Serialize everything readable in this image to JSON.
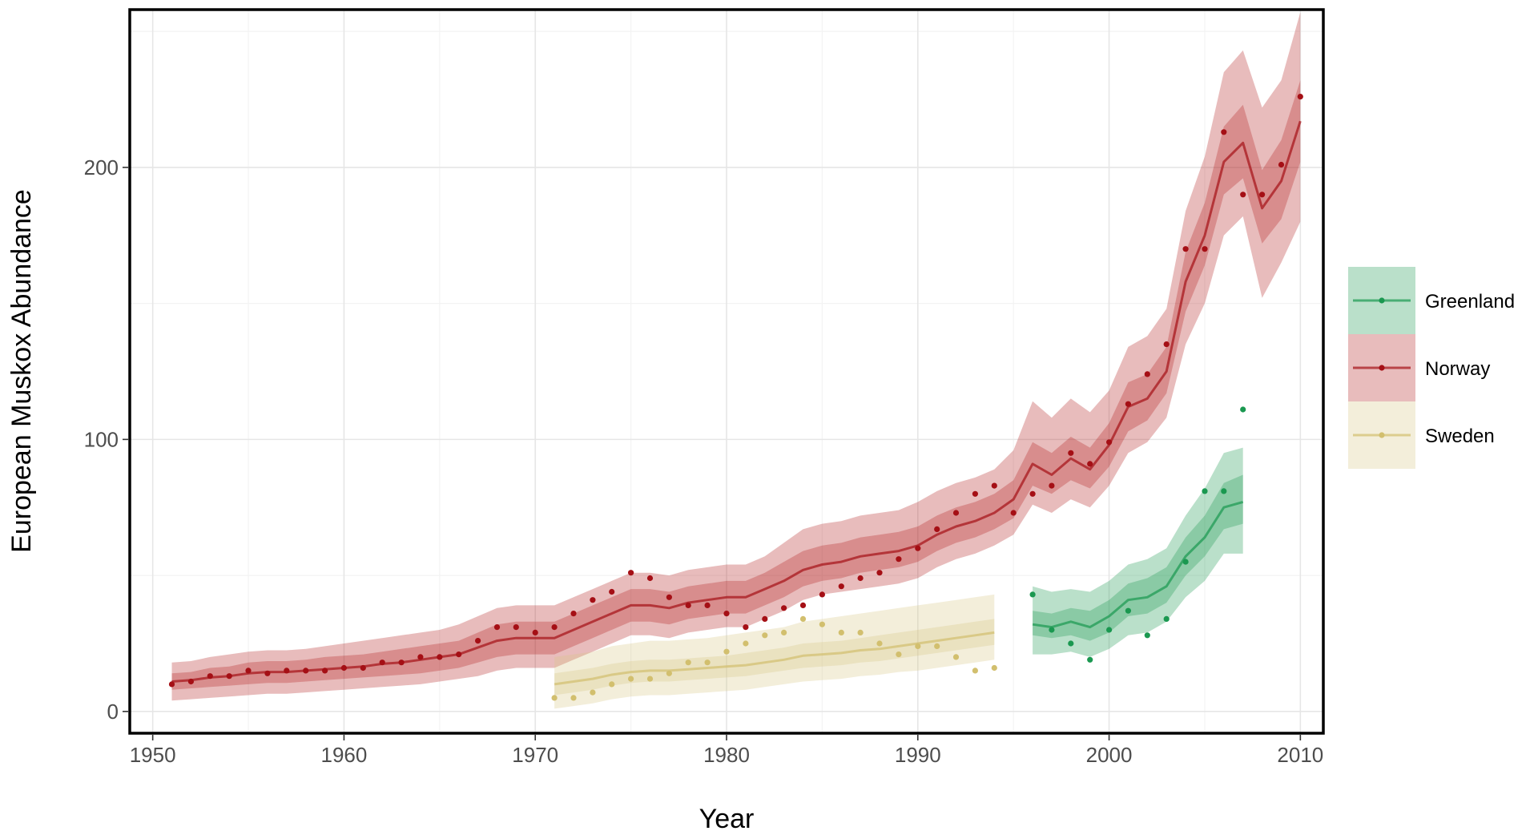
{
  "chart_data": {
    "type": "line",
    "title": "",
    "xlabel": "Year",
    "ylabel": "European Muskox Abundance",
    "xlim": [
      1948.8,
      2011.2
    ],
    "ylim": [
      -8,
      258
    ],
    "x_ticks": [
      1950,
      1960,
      1970,
      1980,
      1990,
      2000,
      2010
    ],
    "x_tick_labels": [
      "1950",
      "1960",
      "1970",
      "1980",
      "1990",
      "2000",
      "2010"
    ],
    "y_ticks": [
      0,
      100,
      200
    ],
    "y_tick_labels": [
      "0",
      "100",
      "200"
    ],
    "grid": true,
    "legend_position": "right",
    "band_note": "two nested credible-interval ribbons per series (inner and outer)",
    "series": [
      {
        "name": "Greenland",
        "color": "#1a9850",
        "band_color": "#1a9850",
        "years": [
          1996,
          1997,
          1998,
          1999,
          2000,
          2001,
          2002,
          2003,
          2004,
          2005,
          2006,
          2007
        ],
        "fitted": [
          32,
          31,
          33,
          31,
          35,
          41,
          42,
          46,
          57,
          64,
          75,
          77
        ],
        "inner_low": [
          28,
          27,
          28,
          26,
          29,
          35,
          36,
          40,
          50,
          57,
          67,
          69
        ],
        "inner_high": [
          37,
          36,
          38,
          37,
          41,
          47,
          49,
          53,
          64,
          72,
          84,
          87
        ],
        "outer_low": [
          21,
          21,
          22,
          20,
          23,
          28,
          29,
          33,
          42,
          48,
          58,
          58
        ],
        "outer_high": [
          46,
          44,
          45,
          44,
          48,
          54,
          56,
          60,
          72,
          82,
          95,
          97
        ],
        "observed": [
          43,
          30,
          25,
          19,
          30,
          37,
          28,
          34,
          55,
          81,
          81,
          111
        ]
      },
      {
        "name": "Norway",
        "color": "#a50f15",
        "band_color": "#b22222",
        "years": [
          1951,
          1952,
          1953,
          1954,
          1955,
          1956,
          1957,
          1958,
          1959,
          1960,
          1961,
          1962,
          1963,
          1964,
          1965,
          1966,
          1967,
          1968,
          1969,
          1970,
          1971,
          1972,
          1973,
          1974,
          1975,
          1976,
          1977,
          1978,
          1979,
          1980,
          1981,
          1982,
          1983,
          1984,
          1985,
          1986,
          1987,
          1988,
          1989,
          1990,
          1991,
          1992,
          1993,
          1994,
          1995,
          1996,
          1997,
          1998,
          1999,
          2000,
          2001,
          2002,
          2003,
          2004,
          2005,
          2006,
          2007,
          2008,
          2009,
          2010
        ],
        "fitted": [
          11,
          11.5,
          12.5,
          13,
          14,
          14.5,
          14.5,
          15,
          15.5,
          16,
          16.5,
          17.5,
          18,
          19,
          20,
          21,
          23.5,
          26,
          27,
          27,
          27,
          30,
          33,
          36,
          39,
          39,
          38,
          40,
          41,
          42,
          42,
          45,
          48,
          52,
          54,
          55,
          57,
          58,
          59,
          61,
          65,
          68,
          70,
          73,
          78,
          91,
          87,
          93,
          89,
          98,
          112,
          115,
          125,
          158,
          175,
          202,
          209,
          185,
          195,
          217
        ],
        "inner_low": [
          8,
          8.5,
          9,
          9.5,
          10,
          10.5,
          10.5,
          11,
          11.5,
          12,
          12.5,
          13,
          13.5,
          14,
          15,
          16,
          18,
          20,
          21,
          21,
          21,
          24,
          27,
          30,
          33,
          33,
          32,
          34,
          35,
          36,
          36,
          39,
          42,
          46,
          48,
          49,
          51,
          52,
          53,
          55,
          59,
          62,
          64,
          67,
          71,
          83,
          80,
          85,
          82,
          90,
          103,
          107,
          117,
          147,
          164,
          190,
          196,
          172,
          181,
          202
        ],
        "inner_high": [
          14,
          14.5,
          16,
          16.5,
          18,
          18.5,
          18.5,
          19,
          20,
          20.5,
          21,
          22,
          23,
          24,
          25,
          26,
          29,
          32,
          33,
          33,
          33,
          36,
          39,
          42,
          45,
          45,
          44,
          46,
          47,
          48,
          48,
          51,
          55,
          59,
          61,
          62,
          64,
          65,
          66,
          68,
          72,
          75,
          77,
          80,
          85,
          99,
          95,
          101,
          97,
          106,
          121,
          124,
          134,
          169,
          187,
          215,
          223,
          199,
          210,
          232
        ],
        "outer_low": [
          4,
          4.5,
          5,
          5.5,
          6,
          6.5,
          6.5,
          7,
          7.5,
          8,
          8.5,
          9,
          9.5,
          10,
          11,
          12,
          13,
          15,
          16,
          16,
          16,
          19,
          22,
          25,
          28,
          28,
          27,
          29,
          30,
          31,
          31,
          34,
          37,
          41,
          43,
          44,
          45,
          46,
          47,
          49,
          53,
          56,
          58,
          61,
          65,
          76,
          73,
          78,
          75,
          83,
          95,
          99,
          108,
          135,
          150,
          175,
          182,
          152,
          165,
          180
        ],
        "outer_high": [
          18,
          18.5,
          20,
          21,
          22,
          22.5,
          22.5,
          23,
          24,
          25,
          26,
          27,
          28,
          29,
          30,
          32,
          35,
          38,
          39,
          39,
          39,
          42,
          45,
          48,
          51,
          51,
          50,
          52,
          53,
          54,
          54,
          57,
          62,
          67,
          69,
          70,
          72,
          73,
          74,
          77,
          81,
          84,
          86,
          89,
          96,
          114,
          108,
          115,
          110,
          118,
          134,
          138,
          148,
          184,
          204,
          235,
          243,
          222,
          232,
          257
        ],
        "observed": [
          10,
          11,
          13,
          13,
          15,
          14,
          15,
          15,
          15,
          16,
          16,
          18,
          18,
          20,
          20,
          21,
          26,
          31,
          31,
          29,
          31,
          36,
          41,
          44,
          51,
          49,
          42,
          39,
          39,
          36,
          31,
          34,
          38,
          39,
          43,
          46,
          49,
          51,
          56,
          60,
          67,
          73,
          80,
          83,
          73,
          80,
          83,
          95,
          91,
          99,
          113,
          124,
          135,
          170,
          170,
          213,
          190,
          190,
          201,
          226
        ]
      },
      {
        "name": "Sweden",
        "color": "#d2bf6e",
        "band_color": "#d8c883",
        "years": [
          1971,
          1972,
          1973,
          1974,
          1975,
          1976,
          1977,
          1978,
          1979,
          1980,
          1981,
          1982,
          1983,
          1984,
          1985,
          1986,
          1987,
          1988,
          1989,
          1990,
          1991,
          1992,
          1993,
          1994
        ],
        "fitted": [
          10,
          11,
          12,
          13.5,
          14.5,
          15,
          15,
          15.5,
          16,
          16.5,
          17,
          18,
          19,
          20.5,
          21,
          21.5,
          22.5,
          23,
          24,
          25,
          26,
          27,
          28,
          29
        ],
        "inner_low": [
          6,
          7,
          8,
          9.5,
          10.5,
          11,
          11,
          11.5,
          12,
          12.5,
          13,
          14,
          15,
          16,
          16.5,
          17,
          18,
          18.5,
          19.5,
          20.5,
          21.5,
          22.5,
          23.5,
          24.5
        ],
        "inner_high": [
          14,
          15,
          16,
          17.5,
          18.5,
          19,
          19,
          19.5,
          20,
          20.5,
          21.5,
          22.5,
          23.5,
          25,
          25.5,
          26,
          27,
          28,
          29,
          30,
          31,
          32,
          33,
          34
        ],
        "outer_low": [
          1,
          2,
          3,
          4.5,
          5.5,
          6,
          6,
          6.5,
          7,
          7.5,
          8,
          9,
          10,
          11,
          11.5,
          12,
          13,
          13.5,
          14.5,
          15,
          16,
          17,
          18,
          19
        ],
        "outer_high": [
          20,
          21,
          22,
          24,
          25,
          26,
          26,
          26.5,
          27,
          28,
          29,
          30,
          31,
          33,
          34,
          35,
          36,
          37,
          38,
          39,
          40,
          41,
          42,
          43
        ],
        "observed": [
          5,
          5,
          7,
          10,
          12,
          12,
          14,
          18,
          18,
          22,
          25,
          28,
          29,
          34,
          32,
          29,
          29,
          25,
          21,
          24,
          24,
          20,
          15,
          16
        ]
      }
    ]
  }
}
